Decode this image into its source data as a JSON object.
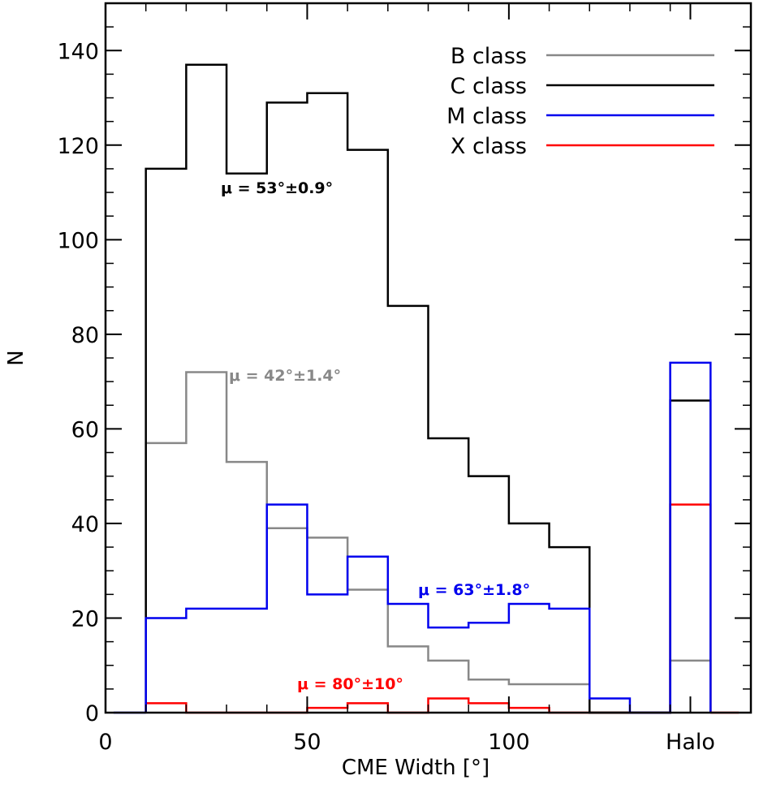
{
  "chart_data": {
    "type": "step-histogram",
    "xlabel": "CME Width [°]",
    "ylabel": "N",
    "xlim": [
      0,
      160
    ],
    "ylim": [
      0,
      150
    ],
    "x_tick_labels": [
      "0",
      "50",
      "100",
      "Halo"
    ],
    "x_tick_values": [
      0,
      50,
      100,
      145
    ],
    "y_tick_labels": [
      "0",
      "20",
      "40",
      "60",
      "80",
      "100",
      "120",
      "140"
    ],
    "y_tick_values": [
      0,
      20,
      40,
      60,
      80,
      100,
      120,
      140
    ],
    "legend_position": "top-right",
    "bin_edges": [
      10,
      20,
      30,
      40,
      50,
      60,
      70,
      80,
      90,
      100,
      110,
      120,
      130
    ],
    "halo_bin": [
      140,
      150
    ],
    "series": [
      {
        "name": "B class",
        "color": "#888888",
        "values": [
          57,
          72,
          53,
          39,
          37,
          26,
          14,
          11,
          7,
          6,
          6,
          0
        ],
        "halo_value": 11,
        "annotation": "μ = 42°±1.4°"
      },
      {
        "name": "C class",
        "color": "#000000",
        "values": [
          115,
          137,
          114,
          129,
          131,
          119,
          86,
          58,
          50,
          40,
          35,
          0
        ],
        "halo_value": 66,
        "annotation": "μ = 53°±0.9°"
      },
      {
        "name": "M class",
        "color": "#0000ee",
        "values": [
          20,
          22,
          22,
          44,
          25,
          33,
          23,
          18,
          19,
          23,
          22,
          3
        ],
        "halo_value": 74,
        "annotation": "μ = 63°±1.8°"
      },
      {
        "name": "X class",
        "color": "#ff0000",
        "values": [
          2,
          0,
          0,
          0,
          1,
          2,
          0,
          3,
          2,
          1,
          0,
          0
        ],
        "halo_value": 44,
        "annotation": "μ = 80°±10°"
      }
    ]
  }
}
